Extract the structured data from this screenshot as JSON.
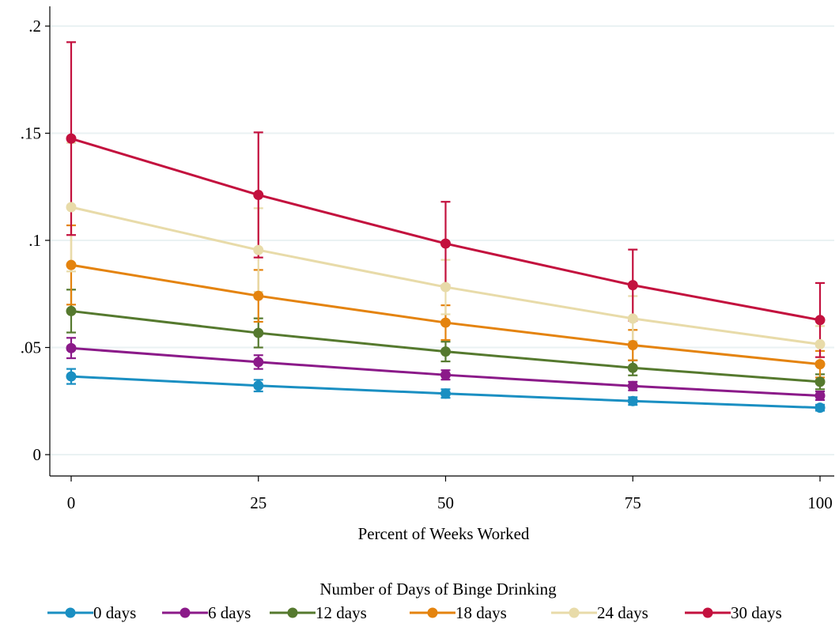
{
  "chart_data": {
    "type": "line",
    "title": "",
    "xlabel": "Percent of Weeks Worked",
    "ylabel": "",
    "x": [
      0,
      25,
      50,
      75,
      100
    ],
    "x_ticks": [
      "0",
      "25",
      "50",
      "75",
      "100"
    ],
    "y_ticks": [
      {
        "value": 0,
        "label": "0"
      },
      {
        "value": 0.05,
        "label": ".05"
      },
      {
        "value": 0.1,
        "label": ".1"
      },
      {
        "value": 0.15,
        "label": ".15"
      },
      {
        "value": 0.2,
        "label": ".2"
      }
    ],
    "xlim": [
      -3,
      100
    ],
    "ylim": [
      -0.011,
      0.21
    ],
    "grid": true,
    "legend_title": "Number of Days of Binge Drinking",
    "legend_position": "bottom",
    "series": [
      {
        "name": "0 days",
        "color": "#1a8fc2",
        "values": [
          0.0365,
          0.0322,
          0.0285,
          0.025,
          0.0219
        ],
        "ci_low": [
          0.033,
          0.0295,
          0.0265,
          0.0232,
          0.0205
        ],
        "ci_high": [
          0.04,
          0.0349,
          0.0305,
          0.0268,
          0.0233
        ]
      },
      {
        "name": "6 days",
        "color": "#8b1a89",
        "values": [
          0.0497,
          0.0432,
          0.0372,
          0.032,
          0.0275
        ],
        "ci_low": [
          0.045,
          0.04,
          0.035,
          0.03,
          0.0255
        ],
        "ci_high": [
          0.0545,
          0.0464,
          0.0394,
          0.034,
          0.0295
        ]
      },
      {
        "name": "12 days",
        "color": "#55792e",
        "values": [
          0.067,
          0.0568,
          0.0481,
          0.0405,
          0.034
        ],
        "ci_low": [
          0.057,
          0.05,
          0.0435,
          0.037,
          0.0305
        ],
        "ci_high": [
          0.077,
          0.0636,
          0.0527,
          0.044,
          0.0375
        ]
      },
      {
        "name": "18 days",
        "color": "#e4830e",
        "values": [
          0.0885,
          0.0741,
          0.0616,
          0.0511,
          0.0422
        ],
        "ci_low": [
          0.07,
          0.062,
          0.0535,
          0.044,
          0.036
        ],
        "ci_high": [
          0.107,
          0.0862,
          0.0697,
          0.0582,
          0.0484
        ]
      },
      {
        "name": "24 days",
        "color": "#e8dba9",
        "values": [
          0.1155,
          0.0955,
          0.0782,
          0.0635,
          0.0515
        ],
        "ci_low": [
          0.0855,
          0.076,
          0.0655,
          0.053,
          0.043
        ],
        "ci_high": [
          0.1455,
          0.115,
          0.0909,
          0.074,
          0.06
        ]
      },
      {
        "name": "30 days",
        "color": "#c3113e",
        "values": [
          0.1475,
          0.1212,
          0.0985,
          0.0791,
          0.0628
        ],
        "ci_low": [
          0.1025,
          0.092,
          0.079,
          0.0625,
          0.0455
        ],
        "ci_high": [
          0.1925,
          0.1504,
          0.118,
          0.0957,
          0.0801
        ]
      }
    ]
  }
}
